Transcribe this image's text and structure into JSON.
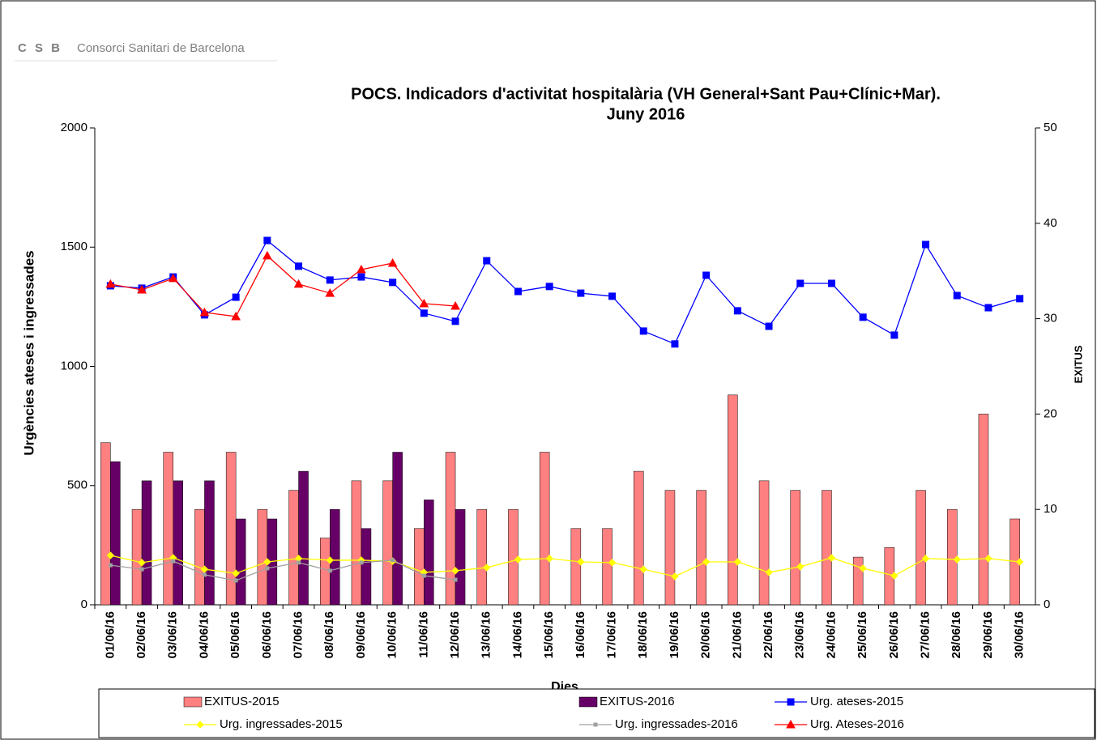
{
  "header": {
    "logo": "C S B",
    "org": "Consorci Sanitari de Barcelona"
  },
  "chart_data": {
    "type": "combo",
    "title": [
      "POCS.  Indicadors d'activitat hospitalària (VH General+Sant Pau+Clínic+Mar).",
      "Juny 2016"
    ],
    "y_label": "Urgències ateses i ingressades",
    "y2_label": "EXITUS",
    "x_label": "Dies",
    "categories": [
      "01/06/16",
      "02/06/16",
      "03/06/16",
      "04/06/16",
      "05/06/16",
      "06/06/16",
      "07/06/16",
      "08/06/16",
      "09/06/16",
      "10/06/16",
      "11/06/16",
      "12/06/16",
      "13/06/16",
      "14/06/16",
      "15/06/16",
      "16/06/16",
      "17/06/16",
      "18/06/16",
      "19/06/16",
      "20/06/16",
      "21/06/16",
      "22/06/16",
      "23/06/16",
      "24/06/16",
      "25/06/16",
      "26/06/16",
      "27/06/16",
      "28/06/16",
      "29/06/16",
      "30/06/16"
    ],
    "ylim": [
      0,
      2000
    ],
    "yticks": [
      0,
      500,
      1000,
      1500,
      2000
    ],
    "y2lim": [
      0,
      50
    ],
    "y2ticks": [
      0,
      10,
      20,
      30,
      40,
      50
    ],
    "legend": "bottom",
    "series": [
      {
        "name": "EXITUS-2015",
        "type": "bar",
        "axis": "y2",
        "color": "#ff8080",
        "values": [
          17,
          10,
          16,
          10,
          16,
          10,
          12,
          7,
          13,
          13,
          8,
          16,
          10,
          10,
          16,
          8,
          8,
          14,
          12,
          12,
          22,
          13,
          12,
          12,
          5,
          6,
          12,
          10,
          20,
          9
        ]
      },
      {
        "name": "EXITUS-2016",
        "type": "bar",
        "axis": "y2",
        "color": "#660066",
        "values": [
          15,
          13,
          13,
          13,
          9,
          9,
          14,
          10,
          8,
          16,
          11,
          10,
          null,
          null,
          null,
          null,
          null,
          null,
          null,
          null,
          null,
          null,
          null,
          null,
          null,
          null,
          null,
          null,
          null,
          null
        ]
      },
      {
        "name": "Urg. ateses-2015",
        "type": "line",
        "marker": "square",
        "color": "#0000ff",
        "values": [
          1338,
          1328,
          1375,
          1216,
          1290,
          1528,
          1420,
          1362,
          1375,
          1352,
          1223,
          1189,
          1443,
          1314,
          1335,
          1307,
          1294,
          1148,
          1094,
          1382,
          1233,
          1168,
          1348,
          1348,
          1206,
          1131,
          1511,
          1297,
          1246,
          1284
        ]
      },
      {
        "name": "Urg. ingressades-2015",
        "type": "line",
        "marker": "diamond",
        "color": "#ffff00",
        "values": [
          207,
          177,
          197,
          149,
          132,
          180,
          194,
          187,
          187,
          183,
          136,
          143,
          156,
          190,
          194,
          180,
          177,
          149,
          119,
          180,
          180,
          136,
          160,
          197,
          153,
          122,
          194,
          190,
          194,
          180
        ]
      },
      {
        "name": "Urg. ingressades-2016",
        "type": "line",
        "marker": "small-square",
        "color": "#a0a0a0",
        "values": [
          166,
          149,
          183,
          126,
          102,
          153,
          177,
          143,
          177,
          187,
          122,
          105,
          null,
          null,
          null,
          null,
          null,
          null,
          null,
          null,
          null,
          null,
          null,
          null,
          null,
          null,
          null,
          null,
          null,
          null
        ]
      },
      {
        "name": "Urg. Ateses-2016",
        "type": "line",
        "marker": "triangle",
        "color": "#ff0000",
        "values": [
          1345,
          1321,
          1369,
          1226,
          1209,
          1464,
          1345,
          1307,
          1406,
          1433,
          1263,
          1253,
          null,
          null,
          null,
          null,
          null,
          null,
          null,
          null,
          null,
          null,
          null,
          null,
          null,
          null,
          null,
          null,
          null,
          null
        ]
      }
    ]
  }
}
